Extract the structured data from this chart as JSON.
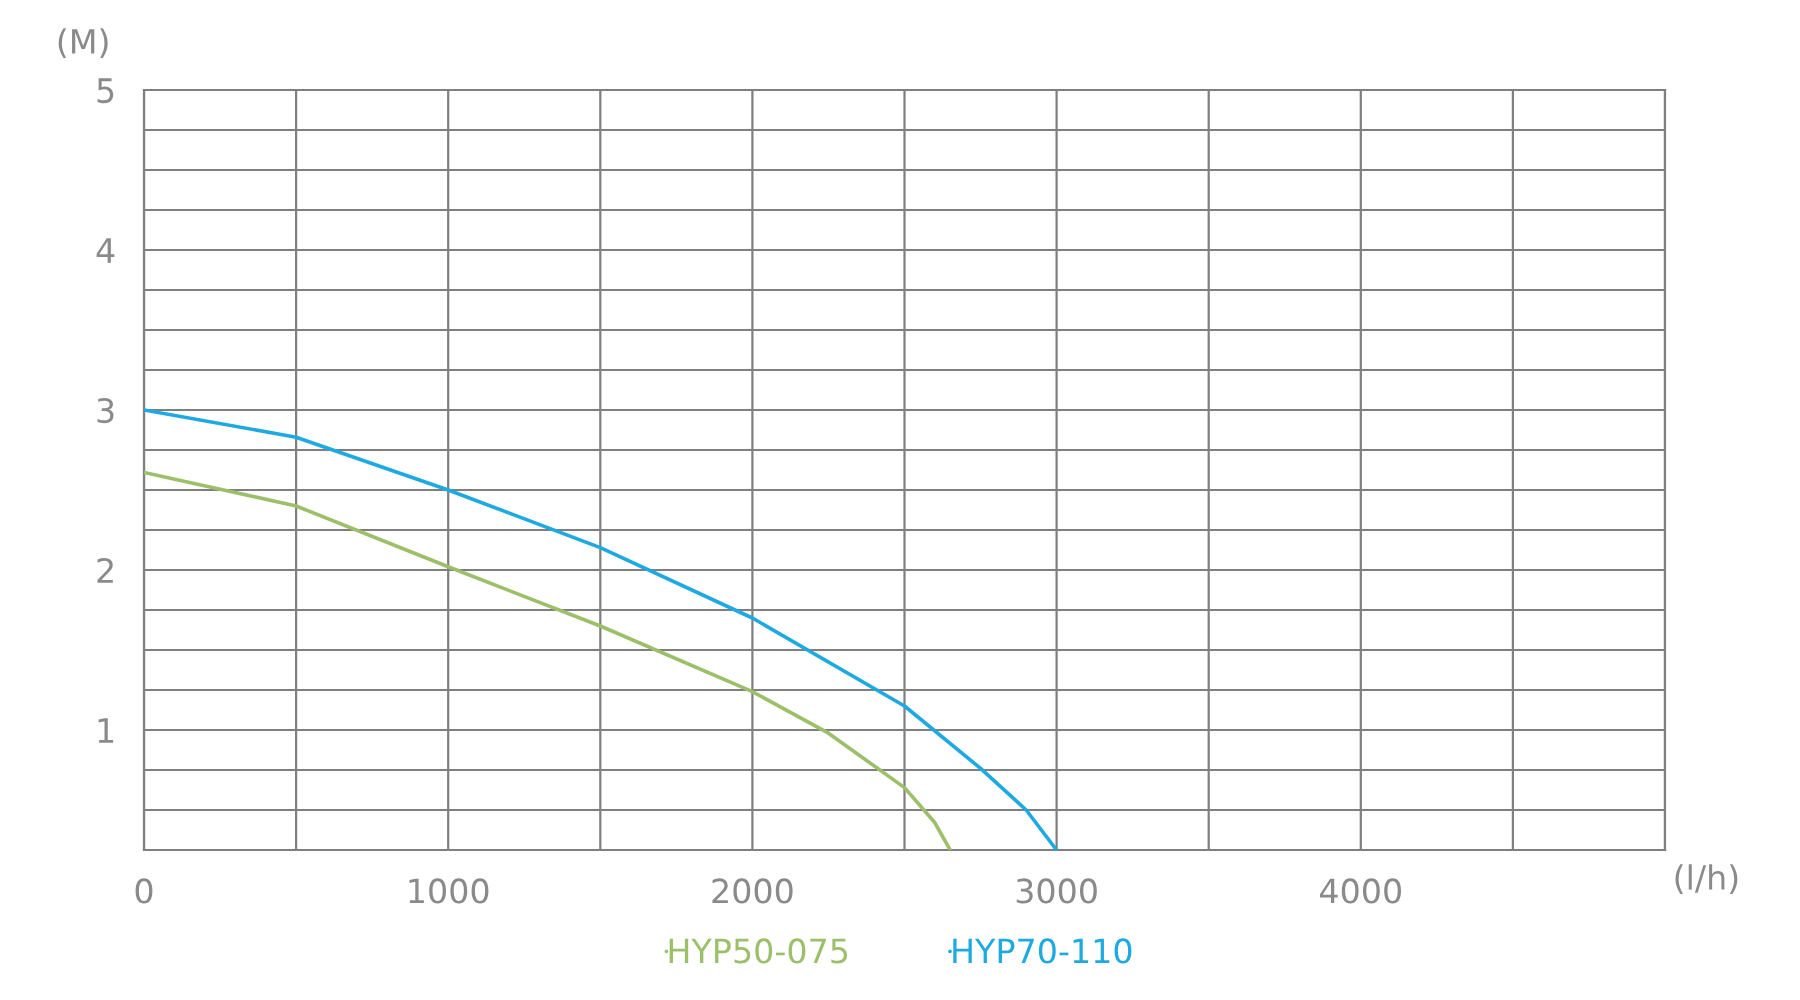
{
  "chart_data": {
    "type": "line",
    "xlabel": "(l/h)",
    "ylabel": "(M)",
    "xlim": [
      0,
      5000
    ],
    "ylim": [
      0.25,
      5
    ],
    "xticks": [
      {
        "value": 0,
        "label": "0"
      },
      {
        "value": 500,
        "label": null
      },
      1000,
      {
        "value": 1500,
        "label": null
      },
      2000,
      {
        "value": 2500,
        "label": null
      },
      3000,
      {
        "value": 3500,
        "label": null
      },
      4000,
      {
        "value": 4500,
        "label": null
      },
      {
        "value": 5000,
        "label": null
      }
    ],
    "yticks": [
      {
        "value": 0.25,
        "label": null
      },
      {
        "value": 0.5,
        "label": null
      },
      {
        "value": 0.75,
        "label": null
      },
      1,
      {
        "value": 1.25,
        "label": null
      },
      {
        "value": 1.5,
        "label": null
      },
      {
        "value": 1.75,
        "label": null
      },
      2,
      {
        "value": 2.25,
        "label": null
      },
      {
        "value": 2.5,
        "label": null
      },
      {
        "value": 2.75,
        "label": null
      },
      3,
      {
        "value": 3.25,
        "label": null
      },
      {
        "value": 3.5,
        "label": null
      },
      {
        "value": 3.75,
        "label": null
      },
      4,
      {
        "value": 4.25,
        "label": null
      },
      {
        "value": 4.5,
        "label": null
      },
      {
        "value": 4.75,
        "label": null
      },
      5
    ],
    "grid": true,
    "legend": "bottom",
    "marker": "none",
    "line_style": "solid",
    "series": [
      {
        "name": "HYP50-075",
        "color": "#9cbf6a",
        "x": [
          0,
          500,
          1000,
          1500,
          2000,
          2250,
          2500,
          2600,
          2650
        ],
        "values": [
          2.61,
          2.4,
          2.02,
          1.65,
          1.24,
          0.98,
          0.64,
          0.42,
          0.25
        ]
      },
      {
        "name": "HYP70-110",
        "color": "#1ea9e1",
        "x": [
          0,
          500,
          1000,
          1500,
          2000,
          2500,
          2750,
          2900,
          3000
        ],
        "values": [
          3.0,
          2.83,
          2.5,
          2.14,
          1.7,
          1.15,
          0.76,
          0.5,
          0.25
        ]
      }
    ]
  }
}
